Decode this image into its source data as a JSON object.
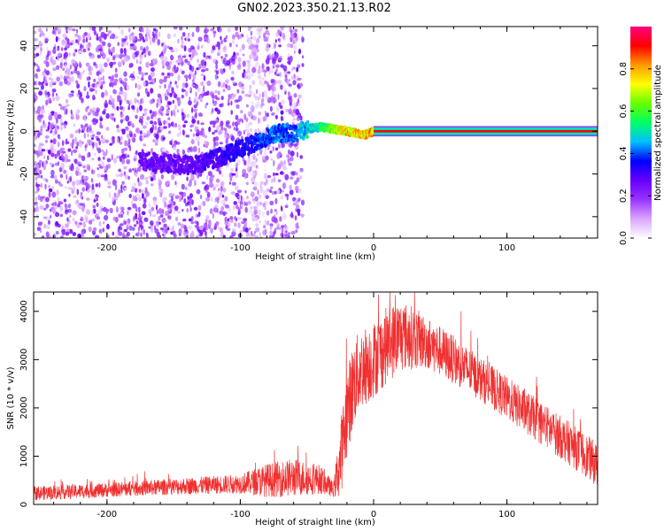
{
  "title": "GN02.2023.350.21.13.R02",
  "chart_data": [
    {
      "type": "heatmap",
      "xlabel": "Height of straight line (km)",
      "ylabel": "Frequency (Hz)",
      "xlim": [
        -255,
        168
      ],
      "ylim": [
        -50,
        49
      ],
      "xticks": [
        -200,
        -100,
        0,
        100
      ],
      "xtick_labels": [
        "-200",
        "-100",
        "0",
        "100"
      ],
      "yticks": [
        -40,
        -20,
        0,
        20,
        40
      ],
      "ytick_labels": [
        "-40",
        "-20",
        "0",
        "20",
        "40"
      ],
      "colorbar": {
        "label": "Normalized spectral amplitude",
        "range": [
          0,
          1
        ],
        "ticks": [
          0,
          0.2,
          0.4,
          0.6,
          0.8
        ],
        "tick_labels": [
          "0.0",
          "0.2",
          "0.4",
          "0.6",
          "0.8"
        ],
        "colors": [
          "#ffffff",
          "#d9a6ff",
          "#9933ff",
          "#6600ff",
          "#0000ff",
          "#00bfff",
          "#00ff66",
          "#66ff00",
          "#ffff00",
          "#ff9900",
          "#ff0000",
          "#ff0080"
        ]
      },
      "noise_region_x": [
        -255,
        -53
      ],
      "signal_track": [
        {
          "x": -175,
          "y": -14,
          "amp": 0.3
        },
        {
          "x": -140,
          "y": -16,
          "amp": 0.3
        },
        {
          "x": -130,
          "y": -15,
          "amp": 0.32
        },
        {
          "x": -120,
          "y": -13,
          "amp": 0.35
        },
        {
          "x": -110,
          "y": -11,
          "amp": 0.35
        },
        {
          "x": -100,
          "y": -8,
          "amp": 0.38
        },
        {
          "x": -90,
          "y": -6,
          "amp": 0.4
        },
        {
          "x": -82,
          "y": -3,
          "amp": 0.45
        },
        {
          "x": -75,
          "y": -1,
          "amp": 0.48
        },
        {
          "x": -60,
          "y": -1,
          "amp": 0.45
        },
        {
          "x": -50,
          "y": 1,
          "amp": 0.55
        },
        {
          "x": -40,
          "y": 2,
          "amp": 0.6
        },
        {
          "x": -30,
          "y": 1,
          "amp": 0.75
        },
        {
          "x": -20,
          "y": 0,
          "amp": 0.85
        },
        {
          "x": -12,
          "y": -1,
          "amp": 0.85
        },
        {
          "x": -8,
          "y": -2,
          "amp": 0.85
        },
        {
          "x": 0,
          "y": 0,
          "amp": 0.9
        },
        {
          "x": 168,
          "y": 0,
          "amp": 0.9
        }
      ]
    },
    {
      "type": "line",
      "xlabel": "Height of straight line (km)",
      "ylabel": "SNR (10 * v/v)",
      "xlim": [
        -255,
        168
      ],
      "ylim": [
        0,
        4400
      ],
      "xticks": [
        -200,
        -100,
        0,
        100
      ],
      "xtick_labels": [
        "-200",
        "-100",
        "0",
        "100"
      ],
      "yticks": [
        0,
        1000,
        2000,
        3000,
        4000
      ],
      "ytick_labels": [
        "0",
        "1000",
        "2000",
        "3000",
        "4000"
      ],
      "color": "#f03030",
      "envelope": {
        "x": [
          -255,
          -200,
          -150,
          -100,
          -80,
          -60,
          -40,
          -30,
          -25,
          -20,
          -15,
          -10,
          0,
          10,
          20,
          30,
          40,
          60,
          80,
          100,
          120,
          140,
          160,
          168
        ],
        "mean": [
          230,
          300,
          370,
          430,
          500,
          560,
          520,
          300,
          900,
          1900,
          2500,
          2800,
          3000,
          3300,
          3500,
          3450,
          3350,
          3000,
          2600,
          2200,
          1800,
          1400,
          1000,
          800
        ],
        "spread": [
          150,
          150,
          170,
          200,
          350,
          400,
          300,
          150,
          800,
          900,
          900,
          850,
          800,
          800,
          750,
          650,
          550,
          500,
          450,
          450,
          450,
          450,
          450,
          450
        ]
      }
    }
  ]
}
